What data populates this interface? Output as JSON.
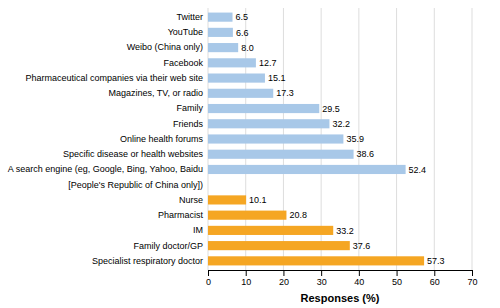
{
  "chart_data": {
    "type": "bar",
    "orientation": "horizontal",
    "categories": [
      "Specialist respiratory doctor",
      "Family doctor/GP",
      "IM",
      "Pharmacist",
      "Nurse",
      "[People's Republic of China only])",
      "A search engine (eg, Google, Bing, Yahoo, Baidu",
      "Specific disease or health websites",
      "Online health forums",
      "Friends",
      "Family",
      "Magazines, TV, or radio",
      "Pharmaceutical companies via their web site",
      "Facebook",
      "Weibo (China only)",
      "YouTube",
      "Twitter"
    ],
    "values": [
      57.3,
      37.6,
      33.2,
      20.8,
      10.1,
      null,
      52.4,
      38.6,
      35.9,
      32.2,
      29.5,
      17.3,
      15.1,
      12.7,
      8.0,
      6.6,
      6.5
    ],
    "value_labels": [
      "57.3",
      "37.6",
      "33.2",
      "20.8",
      "10.1",
      null,
      "52.4",
      "38.6",
      "35.9",
      "32.2",
      "29.5",
      "17.3",
      "15.1",
      "12.7",
      "8.0",
      "6.6",
      "6.5"
    ],
    "colors": [
      "#f5a623",
      "#f5a623",
      "#f5a623",
      "#f5a623",
      "#f5a623",
      null,
      "#a8c8e8",
      "#a8c8e8",
      "#a8c8e8",
      "#a8c8e8",
      "#a8c8e8",
      "#a8c8e8",
      "#a8c8e8",
      "#a8c8e8",
      "#a8c8e8",
      "#a8c8e8",
      "#a8c8e8"
    ],
    "xlabel": "Responses (%)",
    "xlim": [
      0,
      70
    ],
    "xticks": [
      0,
      10,
      20,
      30,
      40,
      50,
      60,
      70
    ],
    "grid": true,
    "data_labels": true
  }
}
